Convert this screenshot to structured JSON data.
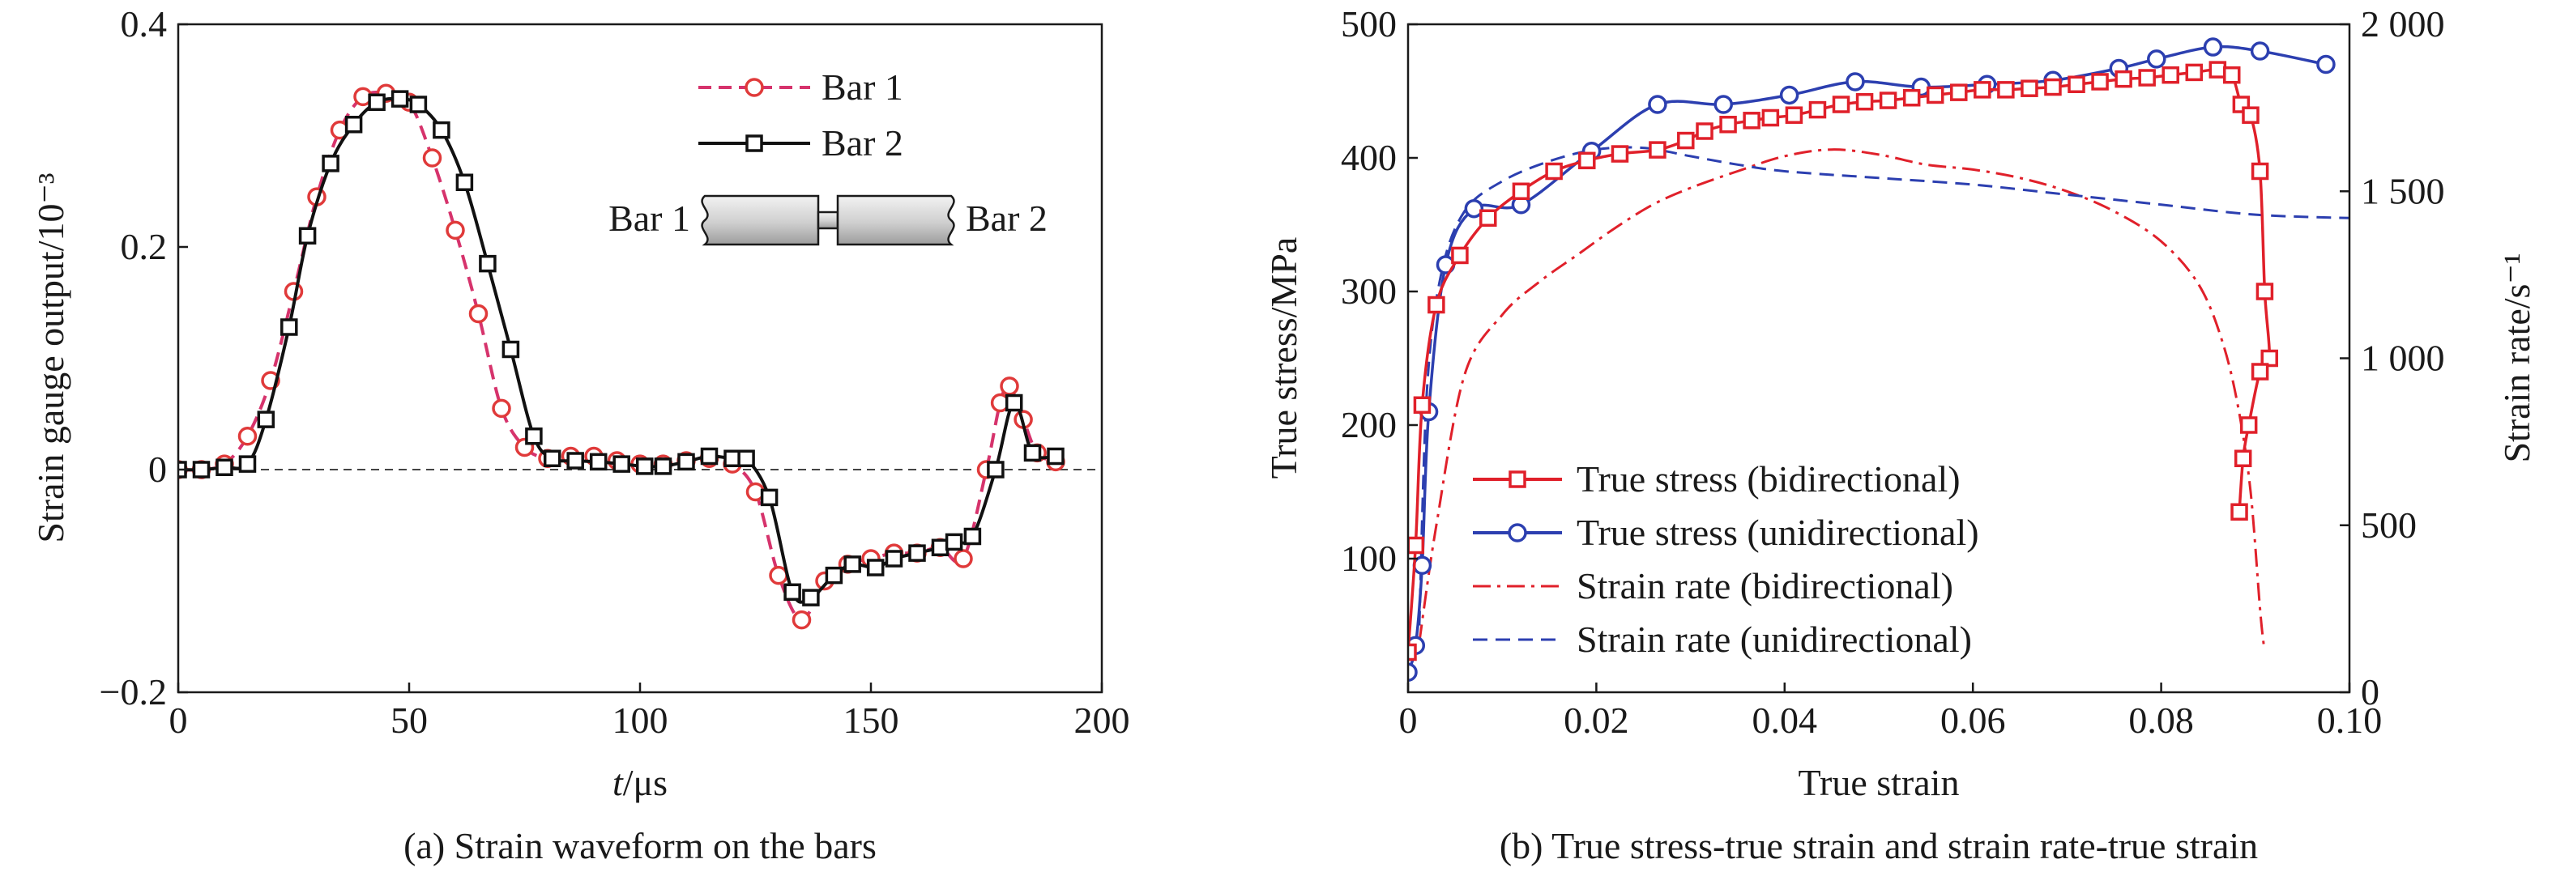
{
  "colors": {
    "bar1": "#d6336c",
    "bar1_marker": "#e03a3a",
    "bar2": "#111111",
    "bidirectional": "#e0202a",
    "unidirectional": "#2c3fb0",
    "zero_line": "#444444"
  },
  "chart_data": [
    {
      "type": "line",
      "caption": "(a) Strain waveform on the bars",
      "xlabel_italic": "t",
      "xlabel_unit": "/μs",
      "ylabel": "Strain gauge output/10⁻³",
      "xlim": [
        0,
        200
      ],
      "ylim": [
        -0.2,
        0.4
      ],
      "xticks": [
        "0",
        "50",
        "100",
        "150",
        "200"
      ],
      "xtick_values": [
        0,
        50,
        100,
        150,
        200
      ],
      "yticks": [
        "−0.2",
        "0",
        "0.2",
        "0.4"
      ],
      "ytick_values": [
        -0.2,
        0,
        0.2,
        0.4
      ],
      "zero_reference_line": true,
      "legend_position": "top-right",
      "inset_labels": [
        "Bar 1",
        "Bar 2"
      ],
      "series": [
        {
          "name": "Bar 1",
          "style": "dashed",
          "marker": "circle",
          "x": [
            0,
            5,
            10,
            15,
            20,
            25,
            30,
            35,
            40,
            45,
            50,
            55,
            60,
            65,
            70,
            75,
            80,
            85,
            90,
            95,
            100,
            105,
            110,
            115,
            120,
            125,
            130,
            135,
            140,
            145,
            150,
            155,
            160,
            165,
            170,
            175,
            178,
            180,
            183,
            186,
            190
          ],
          "y": [
            0,
            0,
            0.005,
            0.03,
            0.08,
            0.16,
            0.245,
            0.305,
            0.335,
            0.338,
            0.33,
            0.28,
            0.215,
            0.14,
            0.055,
            0.02,
            0.01,
            0.012,
            0.012,
            0.008,
            0.005,
            0.005,
            0.008,
            0.01,
            0.005,
            -0.02,
            -0.095,
            -0.135,
            -0.1,
            -0.085,
            -0.08,
            -0.075,
            -0.075,
            -0.07,
            -0.08,
            0,
            0.06,
            0.075,
            0.045,
            0.015,
            0.007
          ]
        },
        {
          "name": "Bar 2",
          "style": "solid",
          "marker": "square",
          "x": [
            0,
            5,
            10,
            15,
            19,
            24,
            28,
            33,
            38,
            43,
            48,
            52,
            57,
            62,
            67,
            72,
            77,
            81,
            86,
            91,
            96,
            101,
            105,
            110,
            115,
            120,
            123,
            128,
            133,
            137,
            142,
            146,
            151,
            155,
            160,
            165,
            168,
            172,
            177,
            181,
            185,
            190
          ],
          "y": [
            0,
            0,
            0.002,
            0.005,
            0.045,
            0.128,
            0.21,
            0.275,
            0.31,
            0.33,
            0.333,
            0.328,
            0.305,
            0.258,
            0.185,
            0.108,
            0.03,
            0.01,
            0.008,
            0.007,
            0.005,
            0.003,
            0.003,
            0.007,
            0.012,
            0.01,
            0.01,
            -0.025,
            -0.11,
            -0.115,
            -0.095,
            -0.085,
            -0.088,
            -0.08,
            -0.075,
            -0.07,
            -0.065,
            -0.06,
            0,
            0.06,
            0.015,
            0.012
          ]
        }
      ]
    },
    {
      "type": "line",
      "caption": "(b) True stress-true strain and strain rate-true strain",
      "xlabel": "True strain",
      "ylabel": "True stress/MPa",
      "ylabel_right": "Strain rate/s⁻¹",
      "xlim": [
        0,
        0.1
      ],
      "ylim": [
        0,
        500
      ],
      "ylim_right": [
        0,
        2000
      ],
      "xticks": [
        "0",
        "0.02",
        "0.04",
        "0.06",
        "0.08",
        "0.10"
      ],
      "xtick_values": [
        0,
        0.02,
        0.04,
        0.06,
        0.08,
        0.1
      ],
      "yticks": [
        "100",
        "200",
        "300",
        "400",
        "500"
      ],
      "ytick_values": [
        100,
        200,
        300,
        400,
        500
      ],
      "yticks_right": [
        "0",
        "500",
        "1 000",
        "1 500",
        "2 000"
      ],
      "ytick_values_right": [
        0,
        500,
        1000,
        1500,
        2000
      ],
      "legend_position": "lower-left",
      "series": [
        {
          "name": "True stress (bidirectional)",
          "axis": "left",
          "style": "solid",
          "marker": "square",
          "x": [
            0.0,
            0.0008,
            0.0015,
            0.003,
            0.0055,
            0.0085,
            0.012,
            0.0155,
            0.019,
            0.0225,
            0.0265,
            0.0295,
            0.0315,
            0.034,
            0.0365,
            0.0385,
            0.041,
            0.0435,
            0.046,
            0.0485,
            0.051,
            0.0535,
            0.056,
            0.0585,
            0.061,
            0.0635,
            0.066,
            0.0685,
            0.071,
            0.0735,
            0.076,
            0.0785,
            0.081,
            0.0835,
            0.086,
            0.0875,
            0.0885,
            0.0895,
            0.0905,
            0.091,
            0.0915,
            0.0905,
            0.0893,
            0.0887,
            0.0883
          ],
          "y": [
            30,
            110,
            215,
            290,
            327,
            355,
            375,
            390,
            398,
            403,
            406,
            413,
            420,
            425,
            428,
            430,
            432,
            436,
            440,
            442,
            443,
            445,
            447,
            449,
            451,
            451,
            452,
            453,
            455,
            457,
            459,
            460,
            462,
            464,
            466,
            462,
            440,
            432,
            390,
            300,
            250,
            240,
            200,
            175,
            135
          ]
        },
        {
          "name": "True stress (unidirectional)",
          "axis": "left",
          "style": "solid",
          "marker": "circle",
          "x": [
            0.0,
            0.0008,
            0.0015,
            0.0022,
            0.004,
            0.007,
            0.012,
            0.0195,
            0.0265,
            0.0335,
            0.0405,
            0.0475,
            0.0545,
            0.0615,
            0.0685,
            0.0755,
            0.0795,
            0.0855,
            0.0905,
            0.0975
          ],
          "y": [
            15,
            35,
            95,
            210,
            320,
            362,
            365,
            405,
            440,
            440,
            447,
            457,
            453,
            455,
            458,
            467,
            474,
            483,
            480,
            470
          ]
        },
        {
          "name": "Strain rate (bidirectional)",
          "axis": "right",
          "style": "dashdot",
          "marker": "none",
          "x": [
            0.0012,
            0.003,
            0.006,
            0.01,
            0.014,
            0.018,
            0.022,
            0.026,
            0.03,
            0.035,
            0.04,
            0.045,
            0.05,
            0.055,
            0.06,
            0.065,
            0.07,
            0.075,
            0.08,
            0.084,
            0.0865,
            0.0882,
            0.0895,
            0.0905,
            0.0909
          ],
          "y": [
            150,
            500,
            950,
            1130,
            1230,
            1310,
            1390,
            1460,
            1510,
            1560,
            1605,
            1625,
            1610,
            1580,
            1565,
            1540,
            1500,
            1440,
            1350,
            1220,
            1050,
            850,
            600,
            250,
            140
          ]
        },
        {
          "name": "Strain rate (unidirectional)",
          "axis": "right",
          "style": "dashed",
          "marker": "none",
          "x": [
            0.0012,
            0.002,
            0.0035,
            0.006,
            0.01,
            0.015,
            0.02,
            0.025,
            0.03,
            0.035,
            0.04,
            0.05,
            0.06,
            0.07,
            0.08,
            0.09,
            0.1
          ],
          "y": [
            200,
            900,
            1250,
            1440,
            1530,
            1590,
            1625,
            1630,
            1605,
            1580,
            1560,
            1540,
            1520,
            1490,
            1460,
            1430,
            1420
          ]
        }
      ]
    }
  ]
}
